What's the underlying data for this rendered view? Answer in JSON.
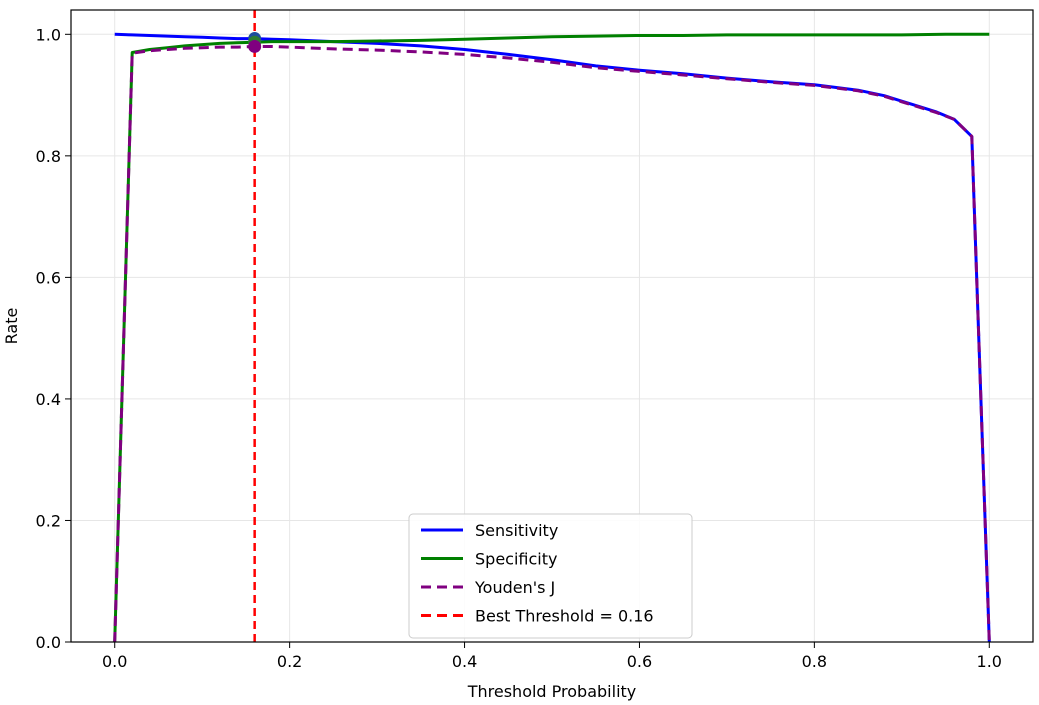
{
  "chart_data": {
    "type": "line",
    "title": "",
    "xlabel": "Threshold Probability",
    "ylabel": "Rate",
    "xlim": [
      -0.05,
      1.05
    ],
    "ylim": [
      0.0,
      1.04
    ],
    "xticks": [
      "0.0",
      "0.2",
      "0.4",
      "0.6",
      "0.8",
      "1.0"
    ],
    "yticks": [
      "0.0",
      "0.2",
      "0.4",
      "0.6",
      "0.8",
      "1.0"
    ],
    "grid": true,
    "legend_position": "bottom-center",
    "series": [
      {
        "name": "Sensitivity",
        "color": "#0000ff",
        "style": "solid",
        "x": [
          0.0,
          0.02,
          0.04,
          0.06,
          0.08,
          0.1,
          0.12,
          0.14,
          0.16,
          0.18,
          0.2,
          0.25,
          0.3,
          0.35,
          0.4,
          0.45,
          0.5,
          0.55,
          0.6,
          0.65,
          0.7,
          0.75,
          0.8,
          0.85,
          0.88,
          0.9,
          0.92,
          0.94,
          0.96,
          0.98,
          1.0
        ],
        "y": [
          1.0,
          0.999,
          0.998,
          0.997,
          0.996,
          0.995,
          0.994,
          0.993,
          0.993,
          0.992,
          0.991,
          0.988,
          0.985,
          0.981,
          0.975,
          0.967,
          0.958,
          0.948,
          0.941,
          0.935,
          0.928,
          0.922,
          0.917,
          0.908,
          0.899,
          0.89,
          0.881,
          0.872,
          0.86,
          0.832,
          0.0
        ]
      },
      {
        "name": "Specificity",
        "color": "#008000",
        "style": "solid",
        "x": [
          0.0,
          0.02,
          0.04,
          0.06,
          0.08,
          0.1,
          0.12,
          0.14,
          0.16,
          0.18,
          0.2,
          0.25,
          0.3,
          0.35,
          0.4,
          0.45,
          0.5,
          0.55,
          0.6,
          0.65,
          0.7,
          0.75,
          0.8,
          0.85,
          0.9,
          0.95,
          1.0
        ],
        "y": [
          0.0,
          0.97,
          0.975,
          0.978,
          0.981,
          0.983,
          0.985,
          0.986,
          0.987,
          0.988,
          0.988,
          0.988,
          0.989,
          0.99,
          0.992,
          0.994,
          0.996,
          0.997,
          0.998,
          0.998,
          0.999,
          0.999,
          0.999,
          0.999,
          0.999,
          1.0,
          1.0
        ]
      },
      {
        "name": "Youden's J",
        "color": "#800080",
        "style": "dashed",
        "x": [
          0.0,
          0.02,
          0.04,
          0.06,
          0.08,
          0.1,
          0.12,
          0.14,
          0.16,
          0.18,
          0.2,
          0.25,
          0.3,
          0.35,
          0.4,
          0.45,
          0.5,
          0.55,
          0.6,
          0.65,
          0.7,
          0.75,
          0.8,
          0.85,
          0.88,
          0.9,
          0.92,
          0.94,
          0.96,
          0.98,
          1.0
        ],
        "y": [
          0.0,
          0.969,
          0.973,
          0.975,
          0.977,
          0.978,
          0.979,
          0.979,
          0.98,
          0.98,
          0.979,
          0.976,
          0.974,
          0.971,
          0.967,
          0.961,
          0.954,
          0.945,
          0.939,
          0.933,
          0.927,
          0.921,
          0.916,
          0.907,
          0.898,
          0.889,
          0.88,
          0.871,
          0.86,
          0.832,
          0.0
        ]
      }
    ],
    "best_threshold": {
      "label": "Best Threshold = 0.16",
      "x": 0.16,
      "color": "#ff0000",
      "style": "dashed",
      "markers": [
        {
          "series": "Sensitivity",
          "y": 0.993,
          "color": "#1f4e9e"
        },
        {
          "series": "Specificity",
          "y": 0.987,
          "color": "#2e7d32"
        },
        {
          "series": "Youden's J",
          "y": 0.98,
          "color": "#800080"
        }
      ]
    }
  }
}
